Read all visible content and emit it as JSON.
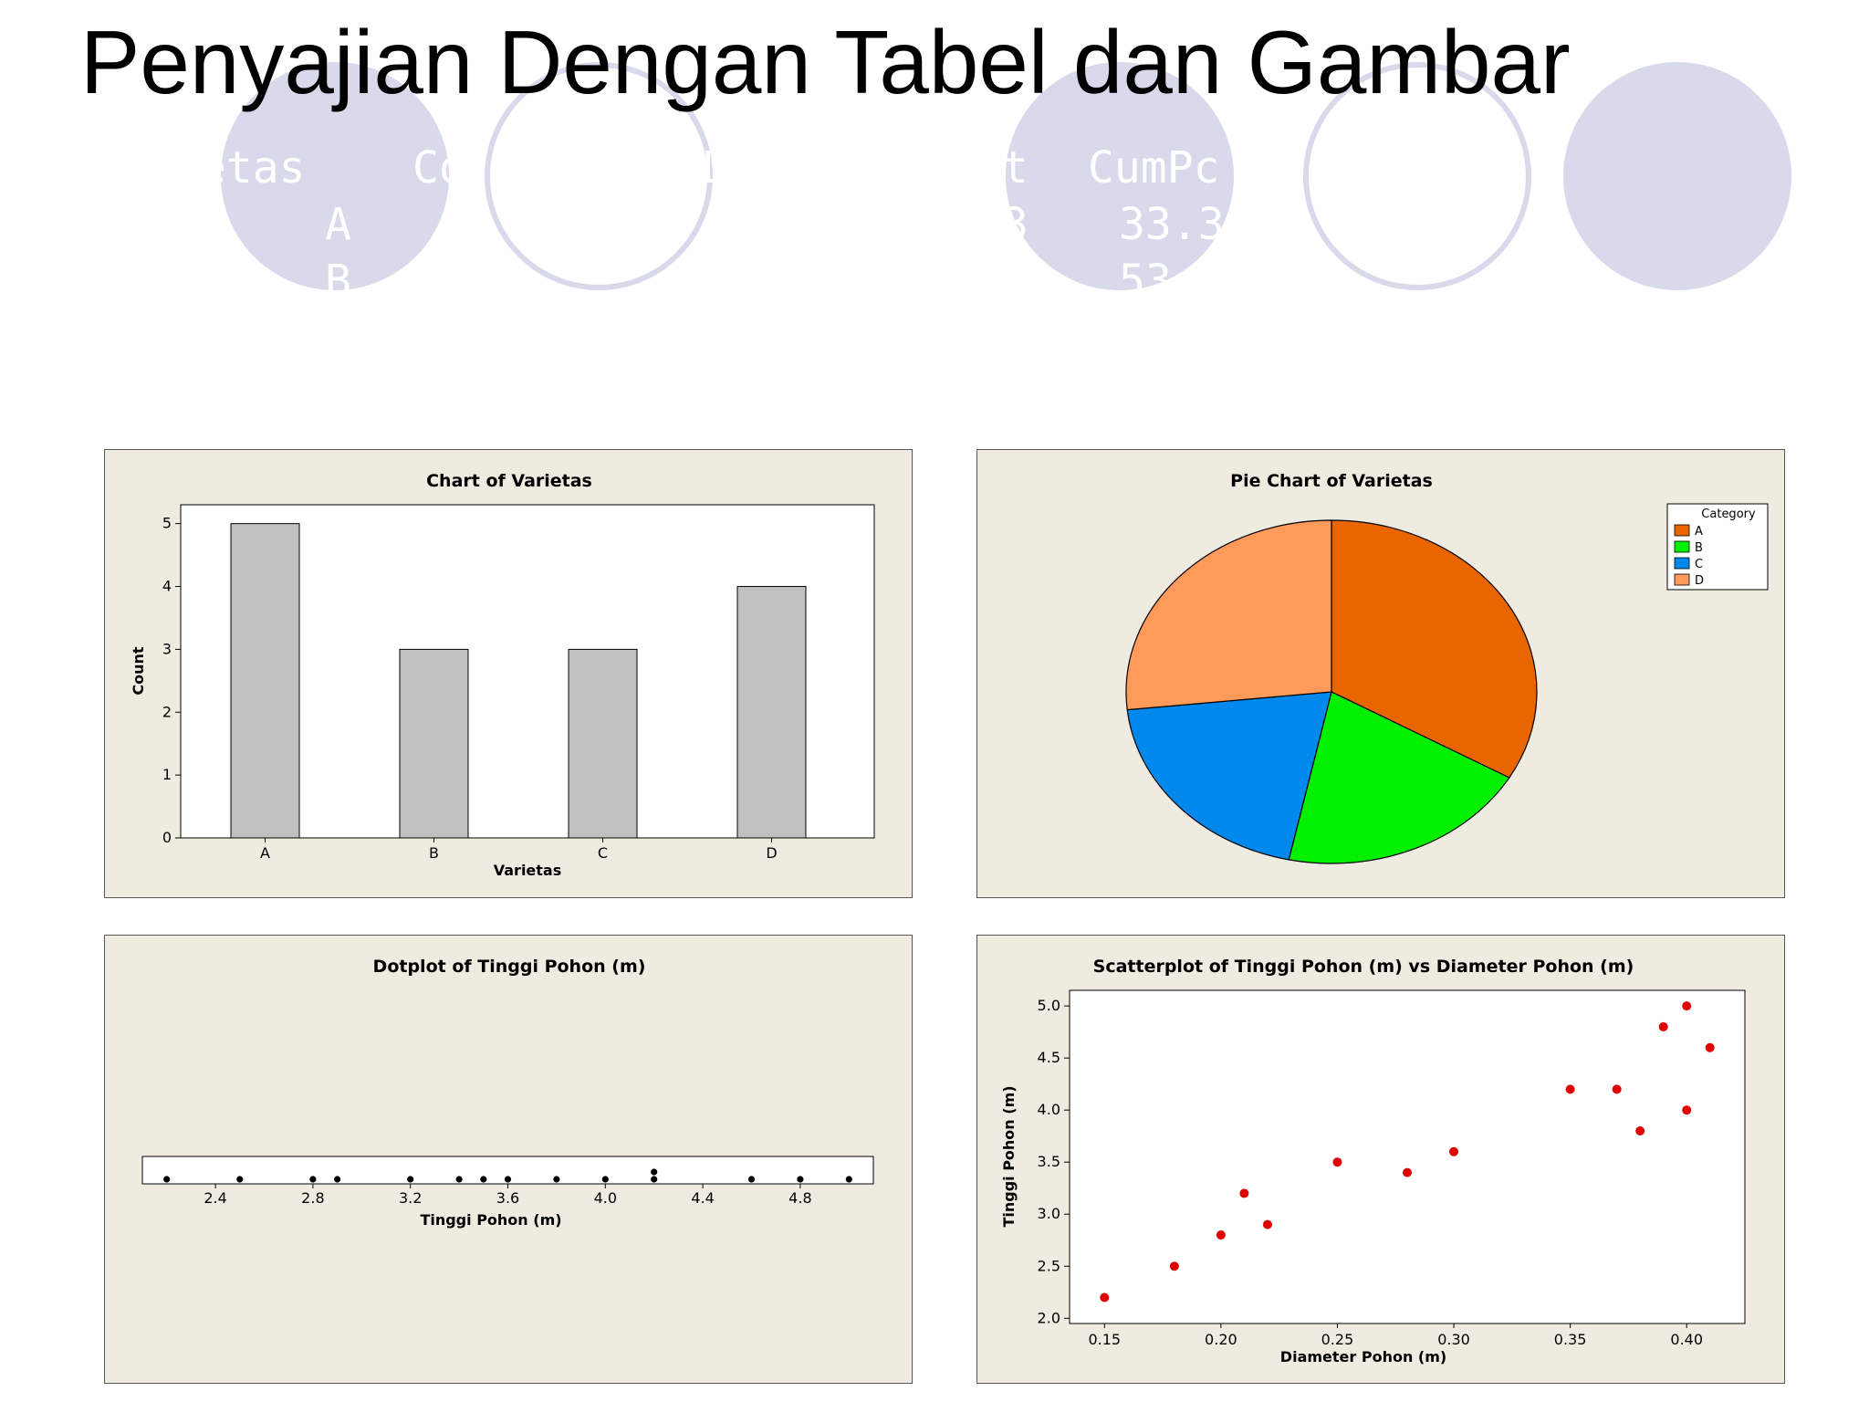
{
  "slide": {
    "title": "Penyajian Dengan Tabel dan Gambar",
    "background_table_fragments": [
      "ietas",
      "Co",
      "D",
      "t",
      "CumPc",
      "A",
      "3",
      "33.3",
      "B",
      "53"
    ]
  },
  "colors": {
    "decor_circle": "#d9d9ec",
    "panel_bg": "#efebe1",
    "bar_fill": "#c0c0c0",
    "slice_A": "#e86500",
    "slice_B": "#00f000",
    "slice_C": "#0088ec",
    "slice_D": "#ff9a5a",
    "scatter_point": "#e00000"
  },
  "chart_data": [
    {
      "type": "bar",
      "title": "Chart of Varietas",
      "xlabel": "Varietas",
      "ylabel": "Count",
      "categories": [
        "A",
        "B",
        "C",
        "D"
      ],
      "values": [
        5,
        3,
        3,
        4
      ],
      "ylim": [
        0,
        5.3
      ],
      "yticks": [
        0,
        1,
        2,
        3,
        4,
        5
      ],
      "grid": false
    },
    {
      "type": "pie",
      "title": "Pie Chart of Varietas",
      "legend_title": "Category",
      "legend_position": "top-right",
      "categories": [
        "A",
        "B",
        "C",
        "D"
      ],
      "values": [
        5,
        3,
        3,
        4
      ]
    },
    {
      "type": "scatter",
      "title": "Dotplot of Tinggi Pohon (m)",
      "xlabel": "Tinggi Pohon (m)",
      "ylabel": "",
      "xlim": [
        2.1,
        5.1
      ],
      "xticks": [
        2.4,
        2.8,
        3.2,
        3.6,
        4.0,
        4.4,
        4.8
      ],
      "x": [
        2.2,
        2.5,
        2.8,
        2.9,
        3.2,
        3.4,
        3.5,
        3.6,
        3.8,
        4.0,
        4.2,
        4.2,
        4.6,
        4.8,
        5.0
      ]
    },
    {
      "type": "scatter",
      "title": "Scatterplot of Tinggi Pohon (m) vs Diameter Pohon (m)",
      "xlabel": "Diameter Pohon (m)",
      "ylabel": "Tinggi Pohon (m)",
      "xlim": [
        0.135,
        0.425
      ],
      "ylim": [
        1.95,
        5.15
      ],
      "xticks": [
        0.15,
        0.2,
        0.25,
        0.3,
        0.35,
        0.4
      ],
      "yticks": [
        2.0,
        2.5,
        3.0,
        3.5,
        4.0,
        4.5,
        5.0
      ],
      "x": [
        0.15,
        0.18,
        0.2,
        0.21,
        0.22,
        0.25,
        0.28,
        0.3,
        0.35,
        0.37,
        0.38,
        0.39,
        0.4,
        0.4,
        0.41
      ],
      "y": [
        2.2,
        2.5,
        2.8,
        3.2,
        2.9,
        3.5,
        3.4,
        3.6,
        4.2,
        4.2,
        3.8,
        4.8,
        5.0,
        4.0,
        4.6
      ]
    }
  ]
}
